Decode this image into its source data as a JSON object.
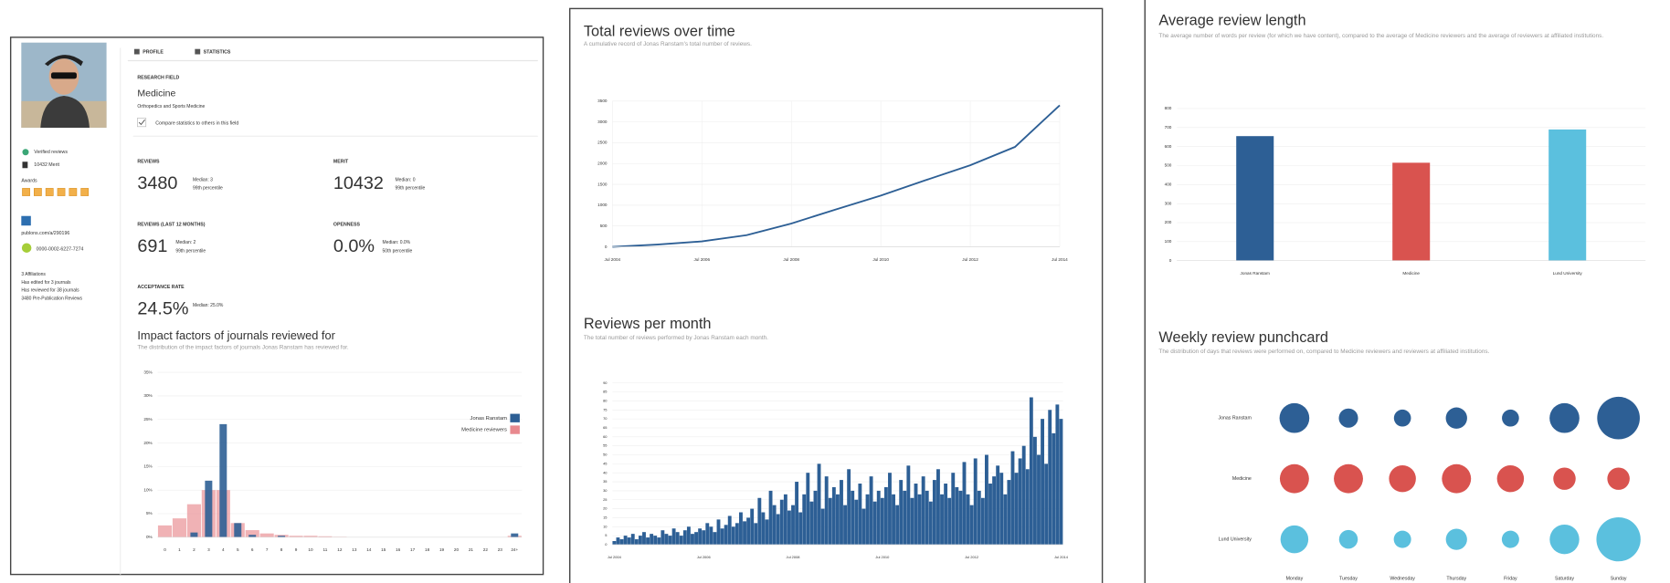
{
  "profile": {
    "tabs": [
      "PROFILE",
      "STATISTICS"
    ],
    "sidebar": {
      "verified": "Verified reviews",
      "merit": "10432 Merit",
      "awards": "Awards",
      "publons": "publons.com/a/290196",
      "orcid": "0000-0002-6227-7274",
      "facts": [
        "3 Affiliations",
        "Has edited for 3 journals",
        "Has reviewed for 38 journals",
        "3480 Pre-Publication Reviews"
      ]
    },
    "research_field": {
      "label": "RESEARCH FIELD",
      "value": "Medicine",
      "subfield": "Orthopedics and Sports Medicine",
      "compare": "Compare statistics to others in this field"
    },
    "stats": [
      {
        "label": "REVIEWS",
        "value": "3480",
        "median": "Median: 3",
        "percentile": "99th percentile"
      },
      {
        "label": "MERIT",
        "value": "10432",
        "median": "Median: 0",
        "percentile": "99th percentile"
      },
      {
        "label": "REVIEWS (LAST 12 MONTHS)",
        "value": "691",
        "median": "Median: 2",
        "percentile": "99th percentile"
      },
      {
        "label": "OPENNESS",
        "value": "0.0%",
        "median": "Median: 0.0%",
        "percentile": "50th percentile"
      },
      {
        "label": "ACCEPTANCE RATE",
        "value": "24.5%",
        "median": "Median: 25.0%"
      }
    ]
  },
  "chart_data": [
    {
      "type": "bar",
      "title": "Impact factors of journals reviewed for",
      "subtitle": "The distribution of the impact factors of journals Jonas Ranstam has reviewed for.",
      "categories": [
        "0",
        "1",
        "2",
        "3",
        "4",
        "5",
        "6",
        "7",
        "8",
        "9",
        "10",
        "11",
        "12",
        "13",
        "14",
        "15",
        "16",
        "17",
        "18",
        "19",
        "20",
        "21",
        "22",
        "23",
        "24+"
      ],
      "series": [
        {
          "name": "Jonas Ranstam",
          "color": "#2d5f95",
          "values": [
            0,
            0,
            1,
            12,
            24,
            3,
            0.5,
            0,
            0.3,
            0,
            0,
            0,
            0,
            0,
            0,
            0,
            0,
            0,
            0,
            0,
            0,
            0,
            0,
            0,
            0.8
          ]
        },
        {
          "name": "Medicine reviewers",
          "color": "#e8898e",
          "values": [
            2.5,
            4,
            7,
            10,
            10,
            3,
            1.5,
            0.8,
            0.5,
            0.3,
            0.3,
            0.2,
            0.1,
            0,
            0,
            0,
            0,
            0,
            0,
            0,
            0,
            0,
            0,
            0,
            0.3
          ]
        }
      ],
      "ylim": [
        0,
        35
      ],
      "yticks": [
        {
          "value": 0,
          "label": "0%"
        },
        {
          "value": 5,
          "label": "5%"
        },
        {
          "value": 10,
          "label": "10%"
        },
        {
          "value": 15,
          "label": "15%"
        },
        {
          "value": 20,
          "label": "20%"
        },
        {
          "value": 25,
          "label": "25%"
        },
        {
          "value": 30,
          "label": "30%"
        },
        {
          "value": 35,
          "label": "35%"
        }
      ],
      "grid": true,
      "legend": "top-right"
    },
    {
      "type": "line",
      "title": "Total reviews over time",
      "subtitle": "A cumulative record of Jonas Ranstam's total number of reviews.",
      "x": [
        2004.5,
        2005.5,
        2006.5,
        2007.5,
        2008.5,
        2009.5,
        2010.5,
        2011.5,
        2012.5,
        2013.5,
        2014.0,
        2014.5
      ],
      "values": [
        0,
        55,
        130,
        280,
        560,
        900,
        1230,
        1600,
        1960,
        2400,
        2900,
        3400
      ],
      "color": "#2d5f95",
      "xlim": [
        2004.5,
        2014.5
      ],
      "xticks": [
        {
          "value": 2004.5,
          "label": "Jul 2004"
        },
        {
          "value": 2006.5,
          "label": "Jul 2006"
        },
        {
          "value": 2008.5,
          "label": "Jul 2008"
        },
        {
          "value": 2010.5,
          "label": "Jul 2010"
        },
        {
          "value": 2012.5,
          "label": "Jul 2012"
        },
        {
          "value": 2014.5,
          "label": "Jul 2014"
        }
      ],
      "ylim": [
        0,
        3500
      ],
      "yticks": [
        0,
        500,
        1000,
        1500,
        2000,
        2500,
        3000,
        3500
      ],
      "grid": true
    },
    {
      "type": "bar",
      "title": "Reviews per month",
      "subtitle": "The total number of reviews performed by Jonas Ranstam each month.",
      "categories": [
        "Jul 2004",
        null,
        null,
        null,
        null,
        null,
        null,
        null,
        null,
        null,
        null,
        null,
        null,
        null,
        null,
        null,
        null,
        null,
        null,
        null,
        null,
        null,
        null,
        null,
        "Jul 2006",
        null,
        null,
        null,
        null,
        null,
        null,
        null,
        null,
        null,
        null,
        null,
        null,
        null,
        null,
        null,
        null,
        null,
        null,
        null,
        null,
        null,
        null,
        null,
        "Jul 2008",
        null,
        null,
        null,
        null,
        null,
        null,
        null,
        null,
        null,
        null,
        null,
        null,
        null,
        null,
        null,
        null,
        null,
        null,
        null,
        null,
        null,
        null,
        null,
        "Jul 2010",
        null,
        null,
        null,
        null,
        null,
        null,
        null,
        null,
        null,
        null,
        null,
        null,
        null,
        null,
        null,
        null,
        null,
        null,
        null,
        null,
        null,
        null,
        null,
        "Jul 2012",
        null,
        null,
        null,
        null,
        null,
        null,
        null,
        null,
        null,
        null,
        null,
        null,
        null,
        null,
        null,
        null,
        null,
        null,
        null,
        null,
        null,
        null,
        null,
        "Jul 2014"
      ],
      "values": [
        2,
        4,
        3,
        5,
        4,
        6,
        3,
        5,
        7,
        4,
        6,
        5,
        4,
        8,
        6,
        5,
        9,
        7,
        5,
        8,
        10,
        6,
        7,
        9,
        8,
        12,
        10,
        7,
        14,
        9,
        11,
        16,
        10,
        12,
        18,
        13,
        15,
        20,
        12,
        26,
        18,
        14,
        30,
        22,
        17,
        25,
        28,
        19,
        22,
        35,
        18,
        28,
        40,
        24,
        30,
        45,
        20,
        38,
        26,
        32,
        28,
        36,
        22,
        42,
        30,
        25,
        34,
        20,
        28,
        38,
        24,
        30,
        26,
        32,
        40,
        28,
        22,
        36,
        30,
        44,
        26,
        34,
        28,
        38,
        30,
        24,
        36,
        42,
        28,
        34,
        26,
        40,
        32,
        30,
        46,
        28,
        22,
        48,
        30,
        26,
        50,
        34,
        38,
        44,
        40,
        28,
        36,
        52,
        40,
        48,
        55,
        42,
        82,
        60,
        50,
        70,
        45,
        75,
        62,
        78,
        70
      ],
      "color": "#2d5f95",
      "ylim": [
        0,
        90
      ],
      "yticks": [
        0,
        5,
        10,
        15,
        20,
        25,
        30,
        35,
        40,
        45,
        50,
        55,
        60,
        65,
        70,
        75,
        80,
        85,
        90
      ],
      "grid": true
    },
    {
      "type": "bar",
      "title": "Average review length",
      "subtitle": "The average number of words per review (for which we have content), compared to the average of Medicine reviewers and the average of reviewers at affiliated institutions.",
      "categories": [
        "Jonas Ranstam",
        "Medicine",
        "Lund University"
      ],
      "values": [
        655,
        515,
        690
      ],
      "colors": [
        "#2d5f95",
        "#d9534f",
        "#5bc0de"
      ],
      "ylim": [
        0,
        800
      ],
      "yticks": [
        0,
        100,
        200,
        300,
        400,
        500,
        600,
        700,
        800
      ],
      "grid": true
    },
    {
      "type": "punchcard",
      "title": "Weekly review punchcard",
      "subtitle": "The distribution of days that reviews were performed on, compared to Medicine reviewers and reviewers at affiliated institutions.",
      "columns": [
        "Monday",
        "Tuesday",
        "Wednesday",
        "Thursday",
        "Friday",
        "Saturday",
        "Sunday"
      ],
      "series": [
        {
          "name": "Jonas Ranstam",
          "color": "#2d5f95",
          "values": [
            17.8,
            7.4,
            5.8,
            9.1,
            5.8,
            17.8,
            36.3
          ]
        },
        {
          "name": "Medicine",
          "color": "#d9534f",
          "values": [
            17,
            17,
            14.5,
            17,
            14.5,
            10,
            10
          ]
        },
        {
          "name": "Lund University",
          "color": "#5bc0de",
          "values": [
            15.5,
            7,
            6,
            9,
            6,
            17.5,
            39
          ]
        }
      ]
    }
  ]
}
